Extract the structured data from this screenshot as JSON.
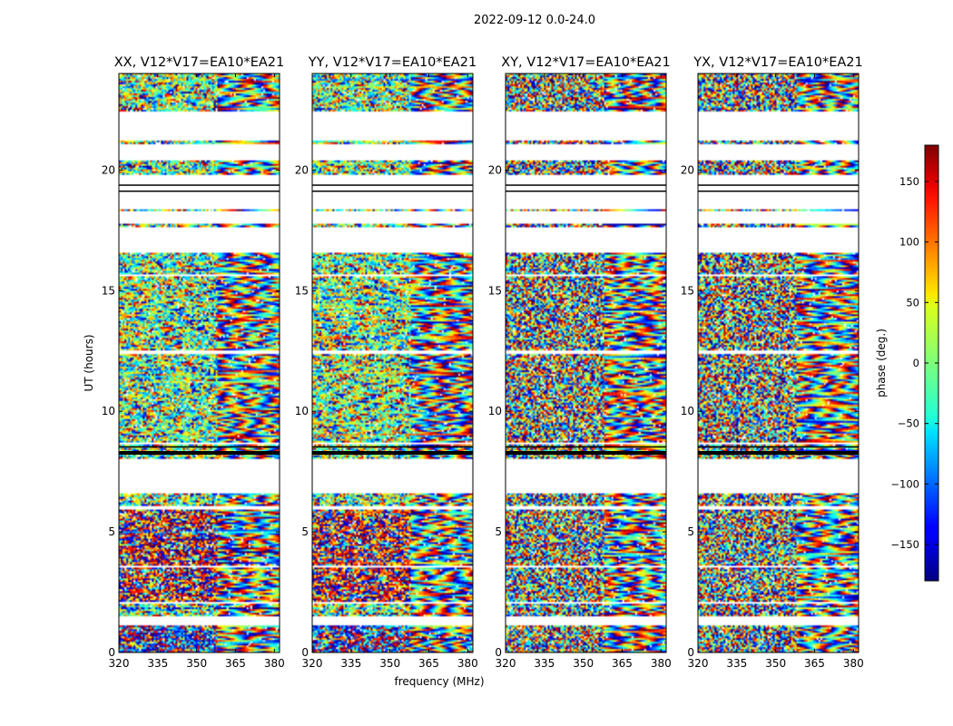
{
  "chart_data": {
    "type": "heatmap",
    "suptitle": "2022-09-12 0.0-24.0",
    "xlabel": "frequency (MHz)",
    "ylabel": "UT (hours)",
    "xlim": [
      320,
      382
    ],
    "ylim": [
      0,
      24
    ],
    "xticks": [
      320,
      335,
      350,
      365,
      380
    ],
    "yticks": [
      0,
      5,
      10,
      15,
      20
    ],
    "panels": [
      {
        "title": "XX, V12*V17=EA10*EA21",
        "style": "parallel"
      },
      {
        "title": "YY, V12*V17=EA10*EA21",
        "style": "parallel"
      },
      {
        "title": "XY, V12*V17=EA10*EA21",
        "style": "cross"
      },
      {
        "title": "YX, V12*V17=EA10*EA21",
        "style": "cross"
      }
    ],
    "colorbar": {
      "label": "phase (deg.)",
      "range": [
        -180,
        180
      ],
      "ticks": [
        150,
        100,
        50,
        0,
        -50,
        -100,
        -150
      ],
      "tick_labels": [
        "150",
        "100",
        "50",
        "0",
        "−50",
        "−100",
        "−150"
      ],
      "colormap": "jet"
    },
    "data_hours": [
      [
        0,
        1.1
      ],
      [
        1.5,
        2.0
      ],
      [
        2.1,
        3.5
      ],
      [
        3.6,
        5.9
      ],
      [
        6.1,
        6.6
      ],
      [
        8.0,
        8.6
      ],
      [
        8.7,
        12.4
      ],
      [
        12.5,
        15.6
      ],
      [
        15.7,
        16.6
      ],
      [
        17.6,
        17.8
      ],
      [
        18.3,
        18.4
      ],
      [
        19.8,
        20.4
      ],
      [
        21.1,
        21.2
      ],
      [
        22.4,
        24.0
      ]
    ],
    "flagged_hours": [
      [
        8.2,
        8.35
      ],
      [
        8.5,
        8.55
      ],
      [
        19.1,
        19.15
      ],
      [
        19.35,
        19.4
      ]
    ]
  }
}
